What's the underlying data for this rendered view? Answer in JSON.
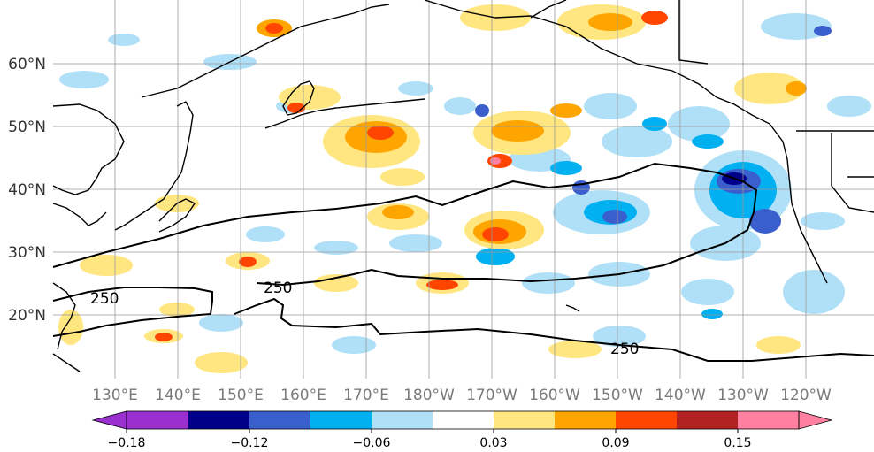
{
  "map": {
    "lat_labels": [
      "60°N",
      "50°N",
      "40°N",
      "30°N",
      "20°N"
    ],
    "lon_labels": [
      "130°E",
      "140°E",
      "150°E",
      "160°E",
      "170°E",
      "180°W",
      "170°W",
      "160°W",
      "150°W",
      "140°W",
      "130°W",
      "120°W"
    ],
    "contour_labels": [
      "250",
      "250",
      "250"
    ]
  },
  "colorbar": {
    "colors": [
      "#9b30d0",
      "#00008b",
      "#3a5fcd",
      "#00b0f0",
      "#b0e0f8",
      "#ffffff",
      "#ffe680",
      "#ffa500",
      "#ff4500",
      "#b22222",
      "#ff80a0"
    ],
    "tick_labels": [
      "−0.18",
      "−0.12",
      "−0.06",
      "0.03",
      "0.09",
      "0.15"
    ]
  },
  "colors": {
    "coastline": "#000000",
    "gridline": "#999999",
    "contour": "#000000"
  }
}
